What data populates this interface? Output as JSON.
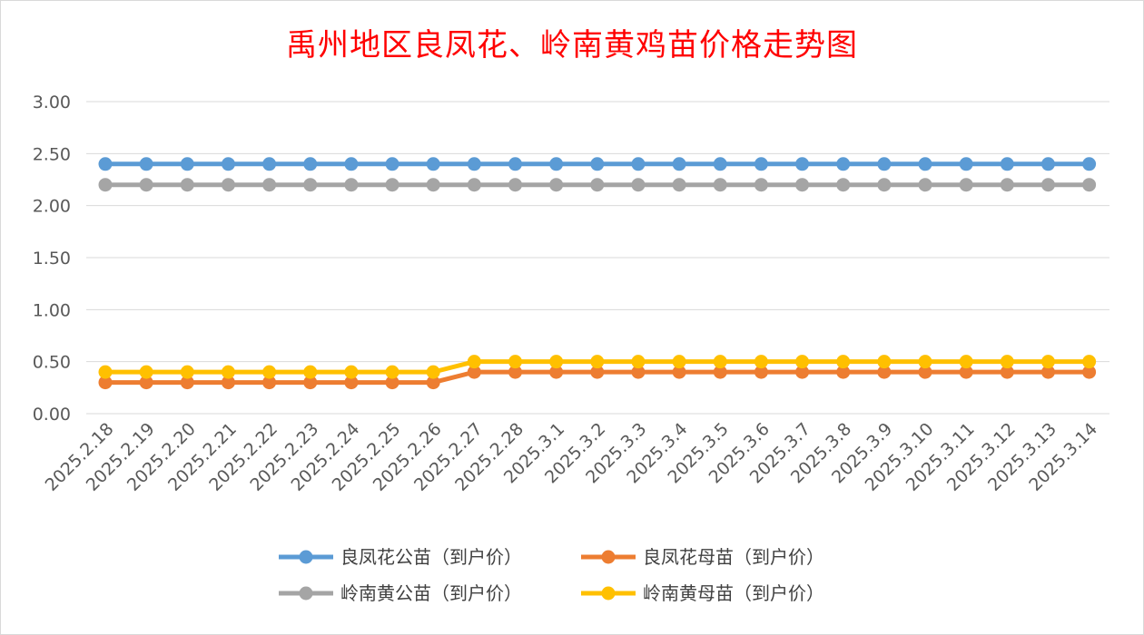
{
  "chart_data": {
    "type": "line",
    "title": "禹州地区良凤花、岭南黄鸡苗价格走势图",
    "xlabel": "",
    "ylabel": "",
    "ylim": [
      0,
      3
    ],
    "yticks": [
      "0.00",
      "0.50",
      "1.00",
      "1.50",
      "2.00",
      "2.50",
      "3.00"
    ],
    "grid": true,
    "legend_position": "bottom",
    "categories": [
      "2025.2.18",
      "2025.2.19",
      "2025.2.20",
      "2025.2.21",
      "2025.2.22",
      "2025.2.23",
      "2025.2.24",
      "2025.2.25",
      "2025.2.26",
      "2025.2.27",
      "2025.2.28",
      "2025.3.1",
      "2025.3.2",
      "2025.3.3",
      "2025.3.4",
      "2025.3.5",
      "2025.3.6",
      "2025.3.7",
      "2025.3.8",
      "2025.3.9",
      "2025.3.10",
      "2025.3.11",
      "2025.3.12",
      "2025.3.13",
      "2025.3.14"
    ],
    "series": [
      {
        "name": "良凤花公苗（到户价）",
        "color": "#5b9bd5",
        "values": [
          2.4,
          2.4,
          2.4,
          2.4,
          2.4,
          2.4,
          2.4,
          2.4,
          2.4,
          2.4,
          2.4,
          2.4,
          2.4,
          2.4,
          2.4,
          2.4,
          2.4,
          2.4,
          2.4,
          2.4,
          2.4,
          2.4,
          2.4,
          2.4,
          2.4
        ]
      },
      {
        "name": "良凤花母苗（到户价）",
        "color": "#ed7d31",
        "values": [
          0.3,
          0.3,
          0.3,
          0.3,
          0.3,
          0.3,
          0.3,
          0.3,
          0.3,
          0.4,
          0.4,
          0.4,
          0.4,
          0.4,
          0.4,
          0.4,
          0.4,
          0.4,
          0.4,
          0.4,
          0.4,
          0.4,
          0.4,
          0.4,
          0.4
        ]
      },
      {
        "name": "岭南黄公苗（到户价）",
        "color": "#a5a5a5",
        "values": [
          2.2,
          2.2,
          2.2,
          2.2,
          2.2,
          2.2,
          2.2,
          2.2,
          2.2,
          2.2,
          2.2,
          2.2,
          2.2,
          2.2,
          2.2,
          2.2,
          2.2,
          2.2,
          2.2,
          2.2,
          2.2,
          2.2,
          2.2,
          2.2,
          2.2
        ]
      },
      {
        "name": "岭南黄母苗（到户价）",
        "color": "#ffc000",
        "values": [
          0.4,
          0.4,
          0.4,
          0.4,
          0.4,
          0.4,
          0.4,
          0.4,
          0.4,
          0.5,
          0.5,
          0.5,
          0.5,
          0.5,
          0.5,
          0.5,
          0.5,
          0.5,
          0.5,
          0.5,
          0.5,
          0.5,
          0.5,
          0.5,
          0.5
        ]
      }
    ]
  }
}
